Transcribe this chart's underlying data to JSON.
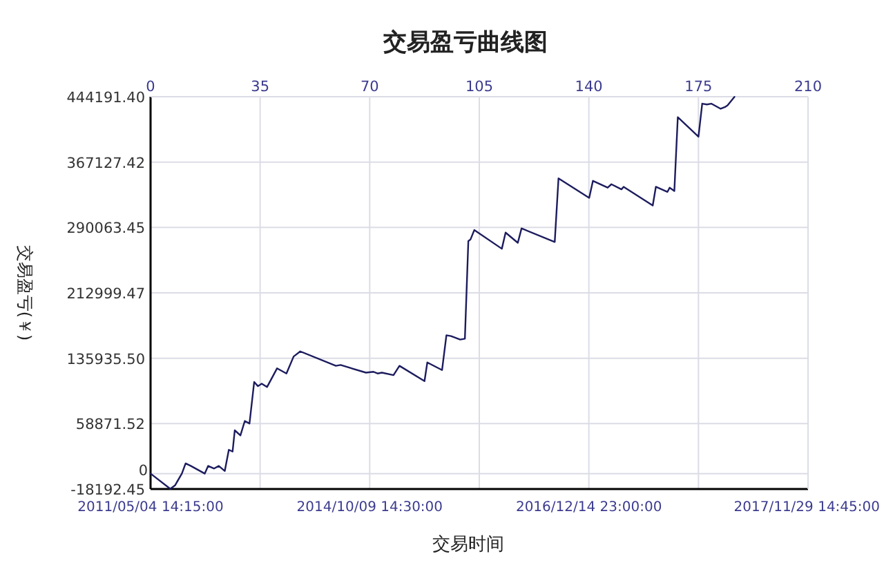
{
  "chart_data": {
    "type": "line",
    "title": "交易盈亏曲线图",
    "xlabel": "交易时间",
    "ylabel": "交易盈亏(￥)",
    "xlim": [
      0,
      210
    ],
    "xticks": [
      0,
      35,
      70,
      105,
      140,
      175,
      210
    ],
    "annotations": [
      "2011/05/04 14:15:00",
      "2014/10/09 14:30:00",
      "2016/12/14 23:00:00",
      "2017/11/29 14:45:00"
    ],
    "ylim": [
      -18192.45,
      444191.4
    ],
    "yticks": [
      {
        "value": -18192.45,
        "label": "-18192.45"
      },
      0,
      {
        "value": 58871.52,
        "label": "58871.52"
      },
      {
        "value": 135935.5,
        "label": "135935.50"
      },
      {
        "value": 212999.47,
        "label": "212999.47"
      },
      {
        "value": 290063.45,
        "label": "290063.45"
      },
      {
        "value": 367127.42,
        "label": "367127.42"
      },
      {
        "value": 444191.4,
        "label": "444191.40"
      }
    ],
    "grid": true,
    "series": [
      {
        "color": "#1c1c5e",
        "x": [
          0,
          6.3,
          7.8,
          10,
          11.2,
          12.9,
          17.3,
          18.4,
          20.3,
          21.8,
          23.7,
          25,
          26.2,
          26.9,
          28.7,
          30.1,
          31.6,
          33.1,
          34.3,
          35.5,
          37.2,
          40.4,
          43.4,
          45.7,
          47.8,
          59.2,
          60.7,
          68.8,
          71.2,
          72.5,
          73.9,
          77.6,
          79.5,
          87.5,
          88.4,
          93.1,
          94.5,
          96,
          98.9,
          100.4,
          101.5,
          102.2,
          103.4,
          112.2,
          113.4,
          117.3,
          118.5,
          129.1,
          130.3,
          140.1,
          141.3,
          146,
          147.2,
          150.4,
          151.1,
          160.4,
          161.4,
          165.1,
          165.8,
          167.3,
          168.4,
          175,
          176.2,
          177.7,
          179.1,
          182.1,
          183.5,
          184.3,
          186.5
        ],
        "values": [
          0,
          -18000,
          -14000,
          0,
          12000,
          9000,
          0,
          9000,
          6000,
          9000,
          3000,
          28000,
          26000,
          51000,
          45000,
          62000,
          59000,
          108000,
          103000,
          106000,
          102000,
          124000,
          118000,
          138000,
          144000,
          127000,
          128000,
          119000,
          120000,
          118000,
          119000,
          116000,
          127000,
          109000,
          131000,
          122000,
          163000,
          162000,
          158000,
          159000,
          274000,
          276000,
          287000,
          265000,
          284000,
          272000,
          289000,
          273000,
          348000,
          325000,
          345000,
          337000,
          341000,
          335000,
          338000,
          316000,
          338000,
          332000,
          337000,
          333000,
          420000,
          397000,
          436000,
          435000,
          436000,
          430000,
          432000,
          434000,
          444000
        ]
      }
    ]
  }
}
